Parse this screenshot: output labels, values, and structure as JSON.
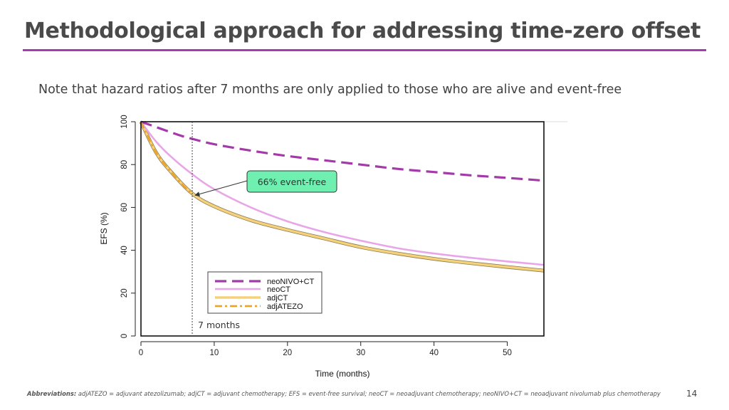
{
  "slide": {
    "title": "Methodological approach for addressing time-zero offset",
    "subtitle": "Note that hazard ratios after 7 months are only applied to those who are alive and event-free",
    "abbrev_label": "Abbreviations:",
    "abbrev_text": " adjATEZO = adjuvant atezolizumab; adjCT = adjuvant chemotherapy; EFS = event-free survival; neoCT = neoadjuvant chemotherapy; neoNIVO+CT =  neoadjuvant nivolumab plus chemotherapy",
    "page_number": "14",
    "accent_color": "#a63bb0"
  },
  "chart_data": {
    "type": "line",
    "xlabel": "Time (months)",
    "ylabel": "EFS (%)",
    "xlim": [
      0,
      55
    ],
    "ylim": [
      0,
      100
    ],
    "x_ticks": [
      0,
      10,
      20,
      30,
      40,
      50
    ],
    "y_ticks": [
      0,
      20,
      40,
      60,
      80,
      100
    ],
    "grid": false,
    "legend_position": "bottom-center",
    "series": [
      {
        "name": "neoNIVO+CT",
        "style": "dashed",
        "color": "#a33aa8",
        "x": [
          0,
          5,
          7,
          10,
          15,
          20,
          25,
          30,
          35,
          40,
          45,
          50,
          55
        ],
        "y": [
          100,
          94,
          92,
          89.5,
          86.5,
          84,
          82,
          80,
          78,
          76.5,
          75,
          73.8,
          72.5
        ]
      },
      {
        "name": "neoCT",
        "style": "solid",
        "color": "#e8a6e8",
        "x": [
          0,
          2,
          4,
          7,
          10,
          15,
          20,
          25,
          30,
          35,
          40,
          45,
          50,
          55
        ],
        "y": [
          100,
          91,
          84,
          75.5,
          68.5,
          60,
          53.5,
          48.5,
          44.5,
          41,
          38.5,
          36.5,
          34.8,
          33.2
        ]
      },
      {
        "name": "adjCT",
        "style": "solid",
        "color": "#f5d27a",
        "x": [
          0,
          2,
          4,
          7,
          10,
          15,
          20,
          25,
          30,
          35,
          40,
          45,
          50,
          55
        ],
        "y": [
          100,
          86,
          77,
          66.5,
          60.5,
          54,
          49.5,
          45.5,
          41.5,
          38.5,
          36,
          34,
          32.2,
          30.5
        ]
      },
      {
        "name": "adjATEZO",
        "style": "dashdot",
        "color": "#f0a020",
        "x": [
          0,
          2,
          4,
          6,
          7
        ],
        "y": [
          100,
          86,
          77,
          69.5,
          66.5
        ]
      }
    ],
    "annotations": [
      {
        "text": "66% event-free",
        "x": 7,
        "y": 66
      },
      {
        "text": "7 months",
        "x": 7,
        "y": 0
      }
    ]
  }
}
